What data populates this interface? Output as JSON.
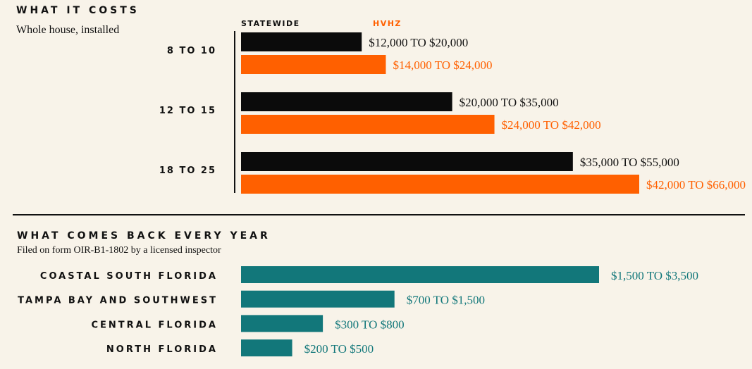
{
  "colors": {
    "background": "#f8f3e9",
    "statewide": "#0b0b0b",
    "hvhz": "#ff6000",
    "teal": "#12777a",
    "rule": "#111111"
  },
  "section1": {
    "title": "WHAT IT COSTS",
    "subtitle": "Whole house, installed",
    "legend": {
      "statewide": "STATEWIDE",
      "hvhz": "HVHZ"
    }
  },
  "section2": {
    "title": "WHAT COMES BACK EVERY YEAR",
    "subtitle": "Filed on form OIR-B1-1802 by a licensed inspector"
  },
  "chart_data": [
    {
      "type": "bar",
      "orientation": "horizontal",
      "title": "WHAT IT COSTS",
      "subtitle": "Whole house, installed",
      "categories": [
        "8 TO 10",
        "12 TO 15",
        "18 TO 25"
      ],
      "series": [
        {
          "name": "STATEWIDE",
          "color": "#0b0b0b",
          "ranges": [
            [
              12000,
              20000
            ],
            [
              20000,
              35000
            ],
            [
              35000,
              55000
            ]
          ],
          "labels": [
            "$12,000 TO $20,000",
            "$20,000 TO $35,000",
            "$35,000 TO $55,000"
          ]
        },
        {
          "name": "HVHZ",
          "color": "#ff6000",
          "ranges": [
            [
              14000,
              24000
            ],
            [
              24000,
              42000
            ],
            [
              42000,
              66000
            ]
          ],
          "labels": [
            "$14,000 TO $24,000",
            "$24,000 TO $42,000",
            "$42,000 TO $66,000"
          ]
        }
      ],
      "legend": "top",
      "grid": false
    },
    {
      "type": "bar",
      "orientation": "horizontal",
      "title": "WHAT COMES BACK EVERY YEAR",
      "subtitle": "Filed on form OIR-B1-1802 by a licensed inspector",
      "categories": [
        "COASTAL SOUTH FLORIDA",
        "TAMPA BAY AND SOUTHWEST",
        "CENTRAL FLORIDA",
        "NORTH FLORIDA"
      ],
      "series": [
        {
          "color": "#12777a",
          "ranges": [
            [
              1500,
              3500
            ],
            [
              700,
              1500
            ],
            [
              300,
              800
            ],
            [
              200,
              500
            ]
          ],
          "labels": [
            "$1,500 TO $3,500",
            "$700 TO $1,500",
            "$300 TO $800",
            "$200 TO $500"
          ]
        }
      ],
      "grid": false
    }
  ]
}
